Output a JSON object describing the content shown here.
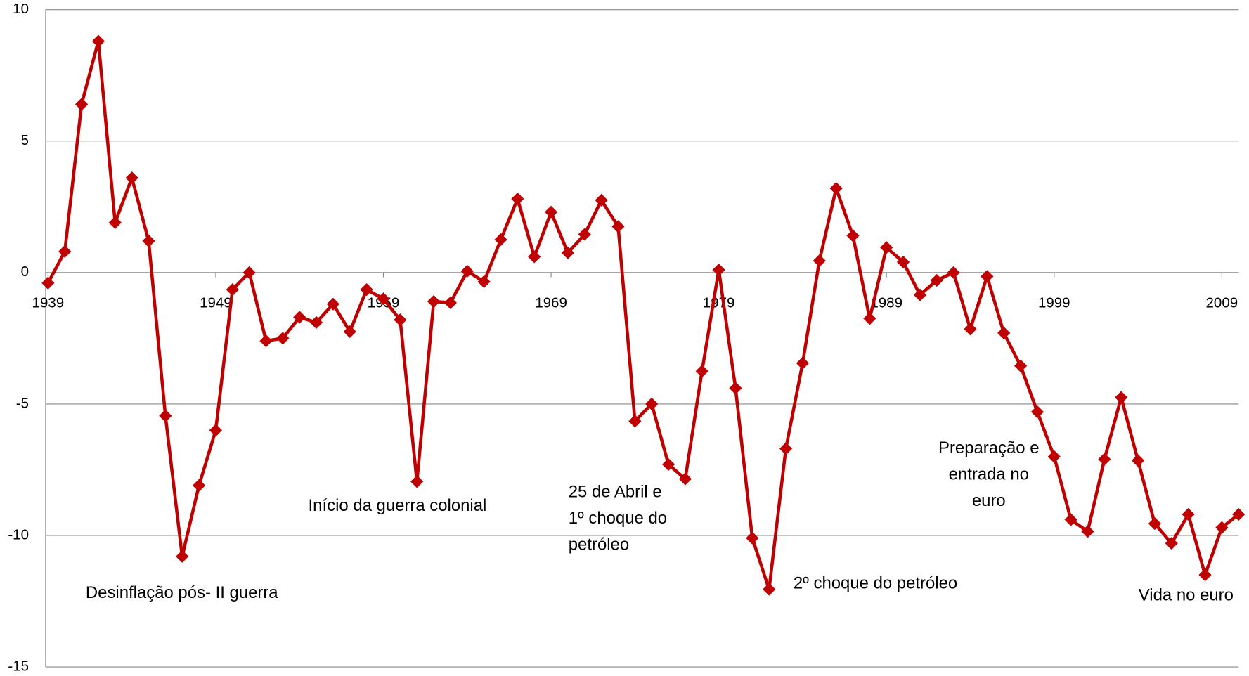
{
  "chart_data": {
    "type": "line",
    "x": [
      1939,
      1940,
      1941,
      1942,
      1943,
      1944,
      1945,
      1946,
      1947,
      1948,
      1949,
      1950,
      1951,
      1952,
      1953,
      1954,
      1955,
      1956,
      1957,
      1958,
      1959,
      1960,
      1961,
      1962,
      1963,
      1964,
      1965,
      1966,
      1967,
      1968,
      1969,
      1970,
      1971,
      1972,
      1973,
      1974,
      1975,
      1976,
      1977,
      1978,
      1979,
      1980,
      1981,
      1982,
      1983,
      1984,
      1985,
      1986,
      1987,
      1988,
      1989,
      1990,
      1991,
      1992,
      1993,
      1994,
      1995,
      1996,
      1997,
      1998,
      1999,
      2000,
      2001,
      2002,
      2003,
      2004,
      2005,
      2006,
      2007,
      2008,
      2009,
      2010
    ],
    "series": [
      {
        "color": "#c00000",
        "values": [
          -0.4,
          0.8,
          6.4,
          8.8,
          1.9,
          3.6,
          1.2,
          -5.45,
          -10.8,
          -8.1,
          -6.0,
          -0.65,
          0.0,
          -2.6,
          -2.5,
          -1.7,
          -1.9,
          -1.2,
          -2.25,
          -0.65,
          -1.0,
          -1.8,
          -7.95,
          -1.1,
          -1.15,
          0.05,
          -0.35,
          1.25,
          2.8,
          0.6,
          2.3,
          0.75,
          1.45,
          2.75,
          1.75,
          -5.65,
          -5.0,
          -7.3,
          -7.85,
          -3.75,
          0.1,
          -4.4,
          -10.1,
          -12.05,
          -6.7,
          -3.45,
          0.45,
          3.2,
          1.4,
          -1.75,
          0.95,
          0.4,
          -0.85,
          -0.3,
          0.0,
          -2.15,
          -0.15,
          -2.3,
          -3.55,
          -5.3,
          -7.0,
          -9.4,
          -9.85,
          -7.1,
          -4.75,
          -7.15,
          -9.55,
          -10.3,
          -9.2,
          -11.5,
          -9.7,
          -9.2
        ]
      }
    ],
    "xlim": [
      1939,
      2010
    ],
    "xticks": [
      1939,
      1949,
      1959,
      1969,
      1979,
      1989,
      1999,
      2009
    ],
    "ylim": [
      -15,
      10
    ],
    "yticks": [
      -15,
      -10,
      -5,
      0,
      5,
      10
    ],
    "grid": true,
    "annotations": [
      [
        "Desinflação pós- II guerra"
      ],
      [
        "Início da guerra colonial"
      ],
      [
        "25 de Abril e",
        "1º choque do",
        "petróleo"
      ],
      [
        "2º choque do petróleo"
      ],
      [
        "Preparação e",
        "entrada no",
        "euro"
      ],
      [
        "Vida no euro"
      ]
    ]
  }
}
